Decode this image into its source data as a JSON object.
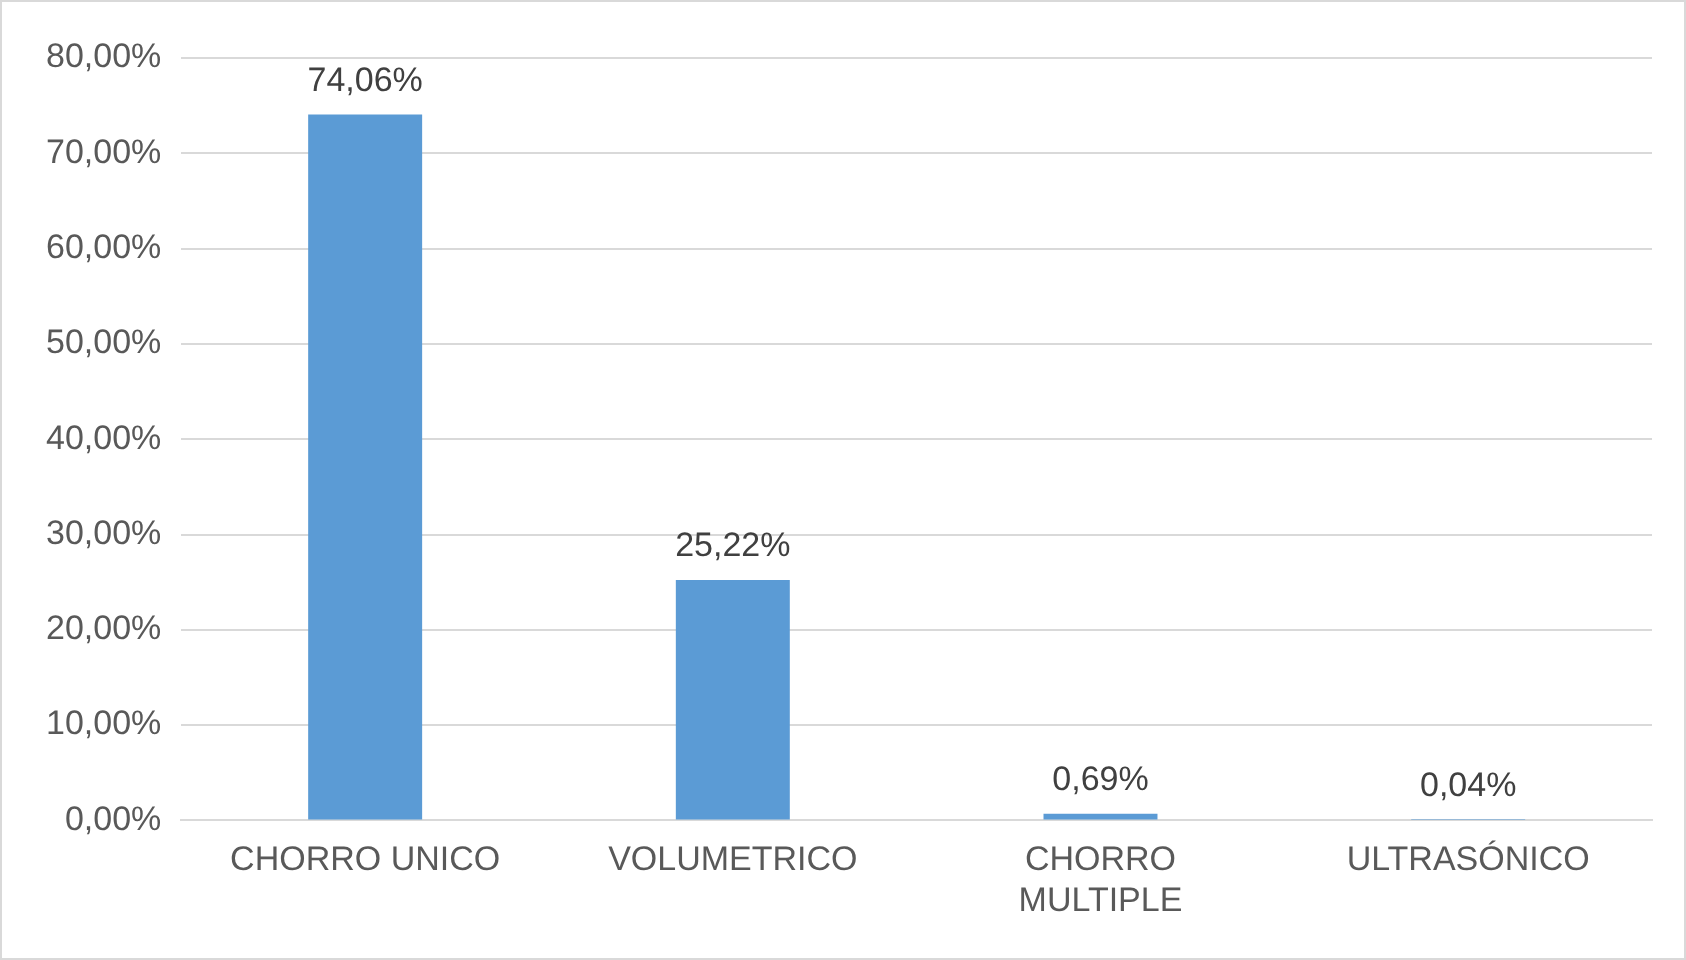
{
  "chart_data": {
    "type": "bar",
    "categories": [
      "CHORRO UNICO",
      "VOLUMETRICO",
      "CHORRO MULTIPLE",
      "ULTRASÓNICO"
    ],
    "values": [
      74.06,
      25.22,
      0.69,
      0.04
    ],
    "color": "#5b9bd5",
    "value_labels": [
      "74,06%",
      "25,22%",
      "0,69%",
      "0,04%"
    ],
    "ylim": [
      0,
      80
    ],
    "yticks": [
      {
        "value": 0,
        "label": "0,00%"
      },
      {
        "value": 10,
        "label": "10,00%"
      },
      {
        "value": 20,
        "label": "20,00%"
      },
      {
        "value": 30,
        "label": "30,00%"
      },
      {
        "value": 40,
        "label": "40,00%"
      },
      {
        "value": 50,
        "label": "50,00%"
      },
      {
        "value": 60,
        "label": "60,00%"
      },
      {
        "value": 70,
        "label": "70,00%"
      },
      {
        "value": 80,
        "label": "80,00%"
      }
    ],
    "grid": "y"
  }
}
